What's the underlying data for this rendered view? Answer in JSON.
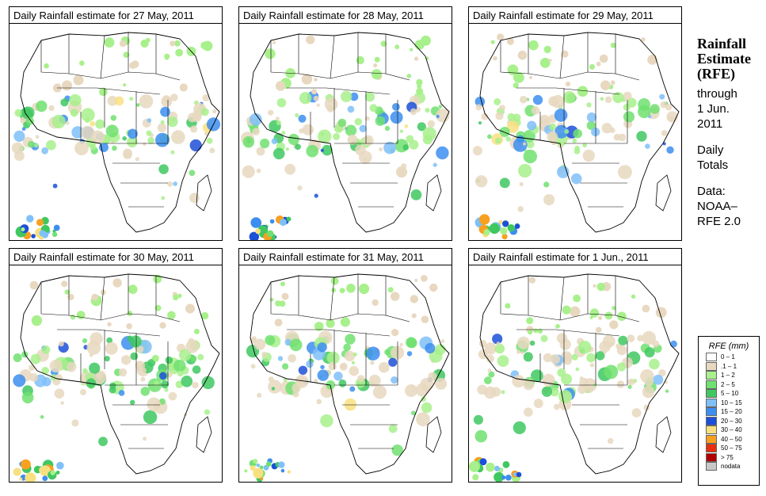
{
  "panels": [
    {
      "title": "Daily Rainfall estimate for  27 May, 2011"
    },
    {
      "title": "Daily Rainfall estimate for  28 May, 2011"
    },
    {
      "title": "Daily Rainfall estimate for  29 May, 2011"
    },
    {
      "title": "Daily Rainfall estimate for  30 May, 2011"
    },
    {
      "title": "Daily Rainfall estimate for  31 May, 2011"
    },
    {
      "title": "Daily Rainfall estimate for  1 Jun., 2011"
    }
  ],
  "side": {
    "title_line1": "Rainfall",
    "title_line2": "Estimate",
    "title_line3": "(RFE)",
    "through": "through",
    "date_line1": "1 Jun.",
    "date_line2": "2011",
    "daily": "Daily",
    "totals": "Totals",
    "data": "Data:",
    "source_line1": "NOAA–",
    "source_line2": "RFE 2.0"
  },
  "legend": {
    "title": "RFE (mm)",
    "items": [
      {
        "label": "0 – 1",
        "color": "#ffffff"
      },
      {
        "label": ".1 – 1",
        "color": "#e8d8c0"
      },
      {
        "label": "1 – 2",
        "color": "#a8f08c"
      },
      {
        "label": "2 – 5",
        "color": "#70e070"
      },
      {
        "label": "5 – 10",
        "color": "#40c860"
      },
      {
        "label": "10 – 15",
        "color": "#80c0f8"
      },
      {
        "label": "15 – 20",
        "color": "#3c8ef0"
      },
      {
        "label": "20 – 30",
        "color": "#1c50d8"
      },
      {
        "label": "30 – 40",
        "color": "#f8e080"
      },
      {
        "label": "40 – 50",
        "color": "#f8a020"
      },
      {
        "label": "50 – 75",
        "color": "#e83010"
      },
      {
        "label": "> 75",
        "color": "#b00000"
      },
      {
        "label": "nodata",
        "color": "#c8c8c8"
      }
    ]
  }
}
